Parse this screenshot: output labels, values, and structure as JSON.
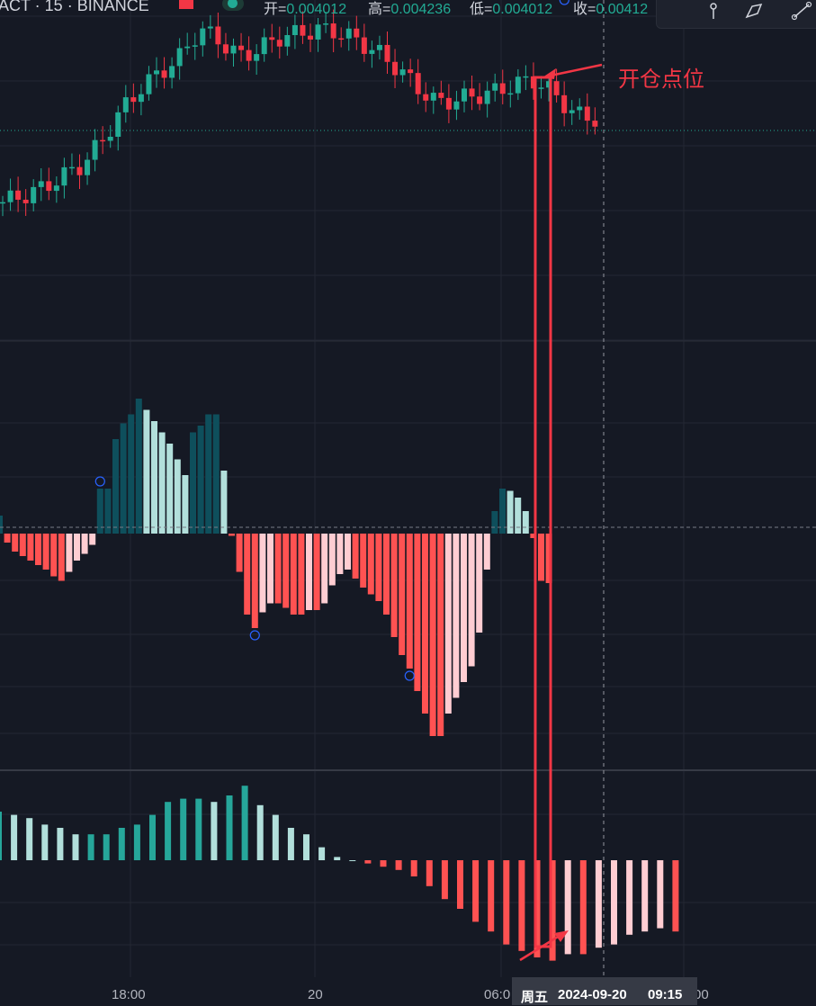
{
  "header": {
    "symbol": "ACT · 15 · BINANCE",
    "ohlc": [
      {
        "label": "开=",
        "value": "0.004012"
      },
      {
        "label": "高=",
        "value": "0.004236"
      },
      {
        "label": "低=",
        "value": "0.004012"
      },
      {
        "label": "收=",
        "value": "0.00412"
      }
    ]
  },
  "toolbar": {
    "icons": [
      "pin-icon",
      "brush-icon",
      "trend-line-icon"
    ]
  },
  "annotation": {
    "text": "开仓点位"
  },
  "x_axis": {
    "labels": [
      "18:00",
      "20",
      "06:0",
      "00"
    ]
  },
  "crosshair_tooltip": {
    "weekday": "周五",
    "date": "2024-09-20",
    "time": "09:15"
  },
  "colors": {
    "background": "#151924",
    "grid": "#232733",
    "up": "#22ab94",
    "down": "#f23645",
    "annotation": "#f23645",
    "macd_up_strong": "#0e4f5c",
    "macd_up_weak": "#b2dfdb",
    "macd_down_strong": "#ff5252",
    "macd_down_weak": "#ffcdd2",
    "osc_up_strong": "#26a69a",
    "osc_up_weak": "#b2dfdb",
    "osc_down_strong": "#ff5252",
    "osc_down_weak": "#ffcdd2"
  },
  "chart_data": [
    {
      "type": "candlestick",
      "price_panel": true,
      "series": [
        {
          "description": "close price trajectory (relative, price panel)",
          "values": [
            0.004012,
            0.00402,
            0.00403,
            0.004045,
            0.00406,
            0.00409,
            0.00413,
            0.00416,
            0.00418,
            0.0042,
            0.004236,
            0.00422,
            0.0042,
            0.00421,
            0.004225,
            0.00423,
            0.004235,
            0.004232,
            0.00422,
            0.004205,
            0.004185,
            0.00416,
            0.00414,
            0.004145,
            0.00415,
            0.004155,
            0.004165,
            0.00417,
            0.00415,
            0.004125,
            0.00412
          ]
        }
      ],
      "last_price_line": true
    },
    {
      "type": "bar",
      "name": "",
      "zero_line": true,
      "values": [
        0.8,
        -0.4,
        -0.8,
        -1.0,
        -1.2,
        -1.4,
        -1.6,
        -1.9,
        -2.1,
        -1.7,
        -1.2,
        -0.9,
        -0.5,
        2.0,
        2.0,
        4.2,
        4.9,
        5.3,
        6.0,
        5.5,
        5.0,
        4.5,
        4.0,
        3.3,
        2.6,
        4.5,
        4.8,
        5.3,
        5.3,
        2.8,
        -0.1,
        -1.7,
        -3.6,
        -4.2,
        -3.5,
        -3.1,
        -3.1,
        -3.3,
        -3.6,
        -3.6,
        -3.4,
        -3.4,
        -3.1,
        -2.3,
        -1.8,
        -1.6,
        -2.0,
        -2.4,
        -2.7,
        -3.0,
        -3.6,
        -4.6,
        -5.4,
        -6.0,
        -7.0,
        -8.0,
        -9.0,
        -9.0,
        -8.0,
        -7.3,
        -6.6,
        -5.9,
        -4.4,
        -1.6,
        1.0,
        2.0,
        1.9,
        1.6,
        1.0,
        -0.2,
        -2.1,
        -2.2
      ],
      "markers": [
        {
          "index": 13,
          "position": "above"
        },
        {
          "index": 33,
          "position": "below"
        },
        {
          "index": 53,
          "position": "below"
        },
        {
          "index": 73,
          "position": "above"
        }
      ]
    },
    {
      "type": "bar",
      "name": "",
      "zero_line": true,
      "values": [
        1.5,
        1.4,
        1.3,
        1.1,
        1.0,
        0.8,
        0.8,
        0.8,
        1.0,
        1.1,
        1.4,
        1.8,
        1.9,
        1.9,
        1.8,
        2.0,
        2.3,
        1.7,
        1.4,
        1.0,
        0.8,
        0.4,
        0.1,
        0.0,
        -0.1,
        -0.2,
        -0.3,
        -0.5,
        -0.8,
        -1.2,
        -1.5,
        -1.9,
        -2.2,
        -2.6,
        -2.8,
        -3.0,
        -3.1,
        -2.9,
        -2.9,
        -2.7,
        -2.6,
        -2.3,
        -2.2,
        -2.1,
        -2.2
      ]
    }
  ]
}
